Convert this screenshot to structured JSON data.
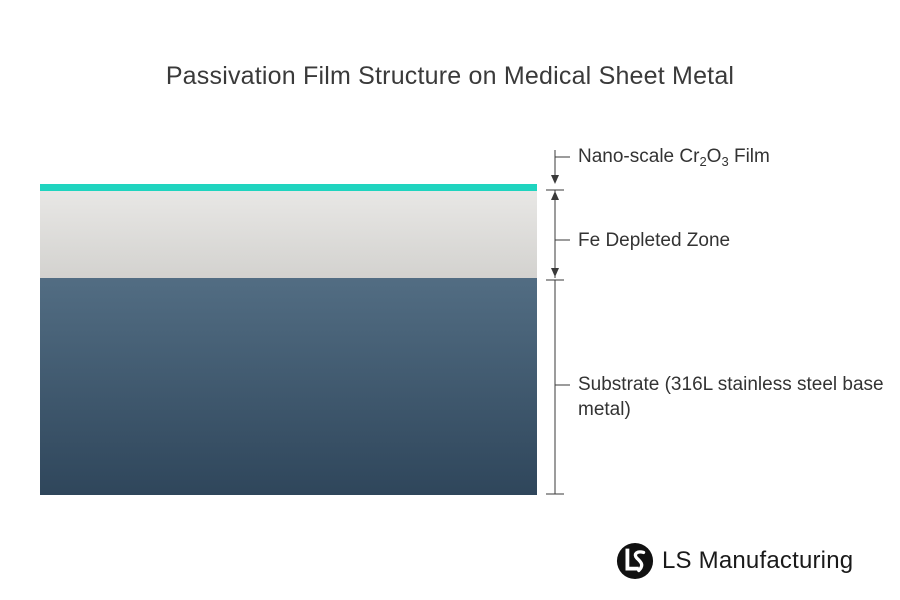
{
  "title": "Passivation Film Structure on Medical Sheet Metal",
  "layers": {
    "film": {
      "label_prefix": "Nano-scale Cr",
      "sub1": "2",
      "mid": "O",
      "sub2": "3",
      "label_suffix": " Film",
      "color": "#1fd4bf"
    },
    "fe_zone": {
      "label": "Fe Depleted Zone",
      "color": "#d9d8d5"
    },
    "substrate": {
      "label": "Substrate (316L stainless steel base metal)",
      "color": "#3f586d"
    }
  },
  "logo": {
    "text": "LS Manufacturing",
    "icon": "ls-logo-icon"
  }
}
